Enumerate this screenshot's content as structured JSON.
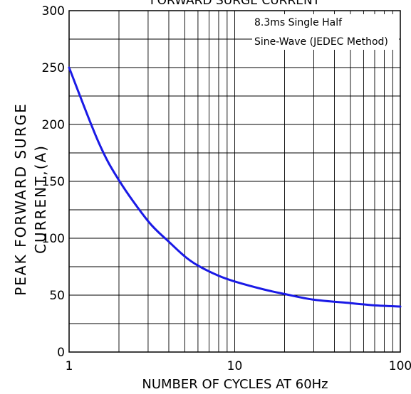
{
  "chart_data": {
    "type": "line",
    "title": "FORWARD SURGE CURRENT",
    "xlabel": "NUMBER OF CYCLES AT 60Hz",
    "ylabel_lines": [
      "PEAK FORWARD SURGE",
      "CURRENT,(A)"
    ],
    "x_scale": "log",
    "xlim": [
      1,
      100
    ],
    "ylim": [
      0,
      300
    ],
    "x_tick_labels": [
      "1",
      "10",
      "100"
    ],
    "y_tick_labels": [
      "0",
      "50",
      "100",
      "150",
      "200",
      "250",
      "300"
    ],
    "grid": true,
    "annotation_lines": [
      "8.3ms Single Half",
      "Sine-Wave (JEDEC Method)"
    ],
    "series": [
      {
        "color": "#1a1ae6",
        "x": [
          1,
          1.5,
          2,
          3,
          4,
          5,
          6,
          8,
          10,
          15,
          20,
          30,
          50,
          70,
          100
        ],
        "y": [
          250,
          185,
          151,
          115,
          97,
          84,
          76,
          67,
          62,
          55,
          51,
          46,
          43,
          41,
          40
        ]
      }
    ]
  }
}
